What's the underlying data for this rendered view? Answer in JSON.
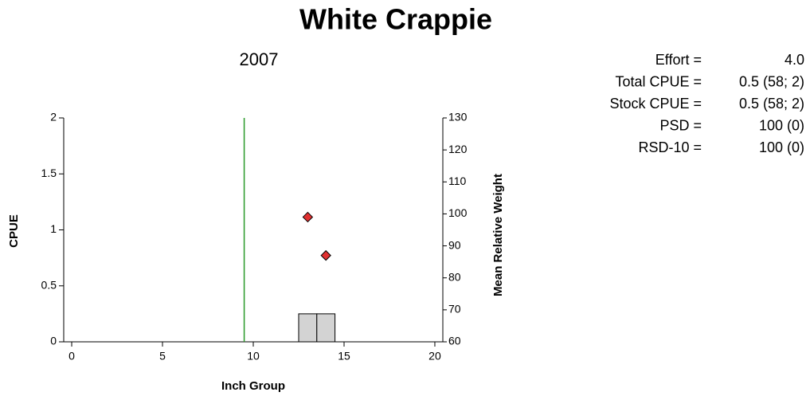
{
  "chart_data": {
    "type": "bar",
    "title": "White Crappie",
    "subtitle": "2007",
    "x_label": "Inch Group",
    "y_label": "CPUE",
    "y2_label": "Mean Relative Weight",
    "x": [
      13,
      14
    ],
    "series": [
      {
        "name": "CPUE",
        "type": "bar",
        "color": "#d3d3d3",
        "x": [
          13,
          14
        ],
        "values": [
          0.25,
          0.25
        ]
      },
      {
        "name": "Mean Relative Weight",
        "type": "scatter",
        "axis": "y2",
        "color": "#e03030",
        "x": [
          13,
          14
        ],
        "values": [
          99,
          87
        ]
      }
    ],
    "reference_line": {
      "x": 9.5,
      "color": "#2a9a2a"
    },
    "xlim": [
      -0.44,
      20.44
    ],
    "xticks": [
      0,
      5,
      10,
      15,
      20
    ],
    "ylim": [
      0,
      2
    ],
    "yticks": [
      0,
      0.5,
      1,
      1.5,
      2
    ],
    "y2lim": [
      60,
      130
    ],
    "y2ticks": [
      60,
      70,
      80,
      90,
      100,
      110,
      120,
      130
    ],
    "stats": [
      {
        "label": "Effort =",
        "value": "4.0"
      },
      {
        "label": "Total CPUE =",
        "value": "0.5 (58; 2)"
      },
      {
        "label": "Stock CPUE =",
        "value": "0.5 (58; 2)"
      },
      {
        "label": "PSD =",
        "value": "100 (0)"
      },
      {
        "label": "RSD-10 =",
        "value": "100 (0)"
      }
    ]
  }
}
